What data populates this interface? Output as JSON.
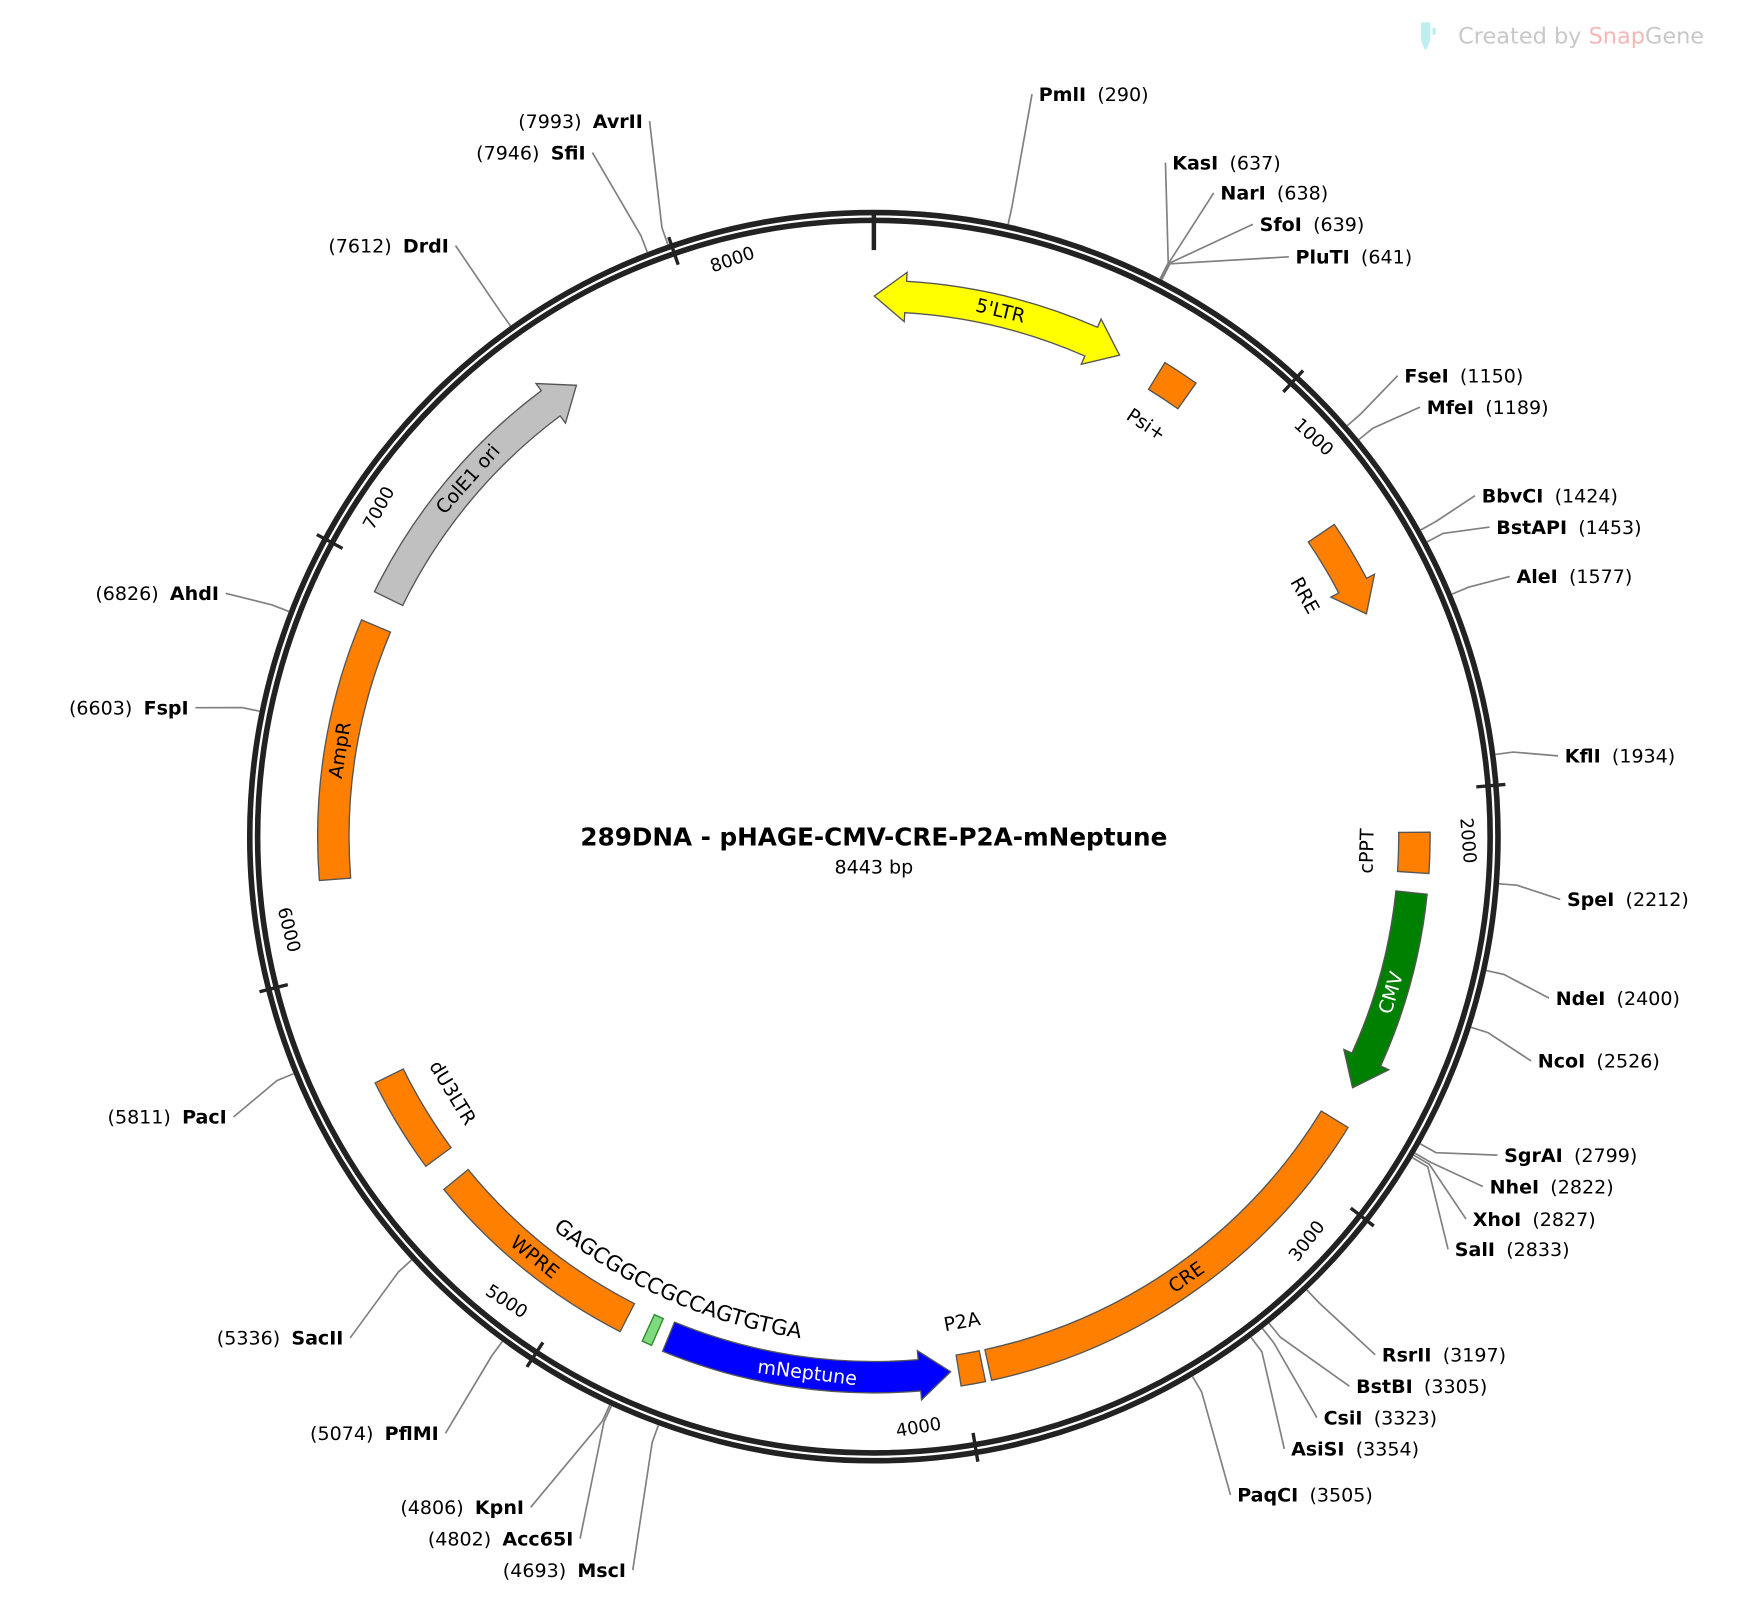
{
  "watermark": {
    "prefix": "Created by ",
    "brand1": "Snap",
    "brand2": "Gene",
    "icon": "snapgene-tube-icon"
  },
  "plasmid": {
    "name": "289DNA - pHAGE-CMV-CRE-P2A-mNeptune",
    "length_label": "8443 bp",
    "length": 8443
  },
  "ticks": [
    "1000",
    "2000",
    "3000",
    "4000",
    "5000",
    "6000",
    "7000",
    "8000"
  ],
  "features": [
    {
      "label": "5'LTR",
      "start": 1,
      "end": 634,
      "direction": "both",
      "color": "#ffff00",
      "text_color": "#000000",
      "label_pos": "inside"
    },
    {
      "label": "Psi+",
      "start": 740,
      "end": 830,
      "direction": "none",
      "color": "#ff8000",
      "text_color": "#000000",
      "label_pos": "inner"
    },
    {
      "label": "RRE",
      "start": 1310,
      "end": 1540,
      "direction": "cw",
      "color": "#ff8000",
      "text_color": "#000000",
      "label_pos": "inner"
    },
    {
      "label": "cPPT",
      "start": 2100,
      "end": 2200,
      "direction": "none",
      "color": "#ff8000",
      "text_color": "#000000",
      "label_pos": "inner"
    },
    {
      "label": "CMV",
      "start": 2250,
      "end": 2760,
      "direction": "cw",
      "color": "#008000",
      "text_color": "#ffffff",
      "label_pos": "inside"
    },
    {
      "label": "CRE",
      "start": 2850,
      "end": 3935,
      "direction": "none",
      "color": "#ff8000",
      "text_color": "#000000",
      "label_pos": "inside"
    },
    {
      "label": "P2A",
      "start": 3950,
      "end": 4010,
      "direction": "none",
      "color": "#ff8000",
      "text_color": "#000000",
      "label_pos": "inner"
    },
    {
      "label": "mNeptune",
      "start": 4030,
      "end": 4745,
      "direction": "ccw",
      "color": "#0000ff",
      "text_color": "#ffffff",
      "label_pos": "inside"
    },
    {
      "label": "WPRE",
      "start": 4858,
      "end": 5409,
      "direction": "none",
      "color": "#ff8000",
      "text_color": "#000000",
      "label_pos": "inside"
    },
    {
      "label": "dU3LTR",
      "start": 5480,
      "end": 5716,
      "direction": "none",
      "color": "#ff8000",
      "text_color": "#000000",
      "label_pos": "inner"
    },
    {
      "label": "AmpR",
      "start": 6226,
      "end": 6870,
      "direction": "none",
      "color": "#ff8000",
      "text_color": "#000000",
      "label_pos": "inside"
    },
    {
      "label": "ColE1 ori",
      "start": 6945,
      "end": 7660,
      "direction": "cw",
      "color": "#c0c0c0",
      "text_color": "#000000",
      "label_pos": "inside"
    }
  ],
  "primer": {
    "sequence": "GAGCGGCCGCCAGTGTGA",
    "start": 4775,
    "end": 4800,
    "color": "#7fd97f"
  },
  "enzymes": [
    {
      "name": "PmlI",
      "pos": 290
    },
    {
      "name": "KasI",
      "pos": 637
    },
    {
      "name": "NarI",
      "pos": 638
    },
    {
      "name": "SfoI",
      "pos": 639
    },
    {
      "name": "PluTI",
      "pos": 641
    },
    {
      "name": "FseI",
      "pos": 1150
    },
    {
      "name": "MfeI",
      "pos": 1189
    },
    {
      "name": "BbvCI",
      "pos": 1424
    },
    {
      "name": "BstAPI",
      "pos": 1453
    },
    {
      "name": "AleI",
      "pos": 1577
    },
    {
      "name": "KflI",
      "pos": 1934
    },
    {
      "name": "SpeI",
      "pos": 2212
    },
    {
      "name": "NdeI",
      "pos": 2400
    },
    {
      "name": "NcoI",
      "pos": 2526
    },
    {
      "name": "SgrAI",
      "pos": 2799
    },
    {
      "name": "NheI",
      "pos": 2822
    },
    {
      "name": "XhoI",
      "pos": 2827
    },
    {
      "name": "SalI",
      "pos": 2833
    },
    {
      "name": "RsrII",
      "pos": 3197
    },
    {
      "name": "BstBI",
      "pos": 3305
    },
    {
      "name": "CsiI",
      "pos": 3323
    },
    {
      "name": "AsiSI",
      "pos": 3354
    },
    {
      "name": "PaqCI",
      "pos": 3505
    },
    {
      "name": "MscI",
      "pos": 4693
    },
    {
      "name": "Acc65I",
      "pos": 4802
    },
    {
      "name": "KpnI",
      "pos": 4806
    },
    {
      "name": "PflMI",
      "pos": 5074
    },
    {
      "name": "SacII",
      "pos": 5336
    },
    {
      "name": "PacI",
      "pos": 5811
    },
    {
      "name": "FspI",
      "pos": 6603
    },
    {
      "name": "AhdI",
      "pos": 6826
    },
    {
      "name": "DrdI",
      "pos": 7612
    },
    {
      "name": "SfiI",
      "pos": 7946
    },
    {
      "name": "AvrII",
      "pos": 7993
    }
  ]
}
